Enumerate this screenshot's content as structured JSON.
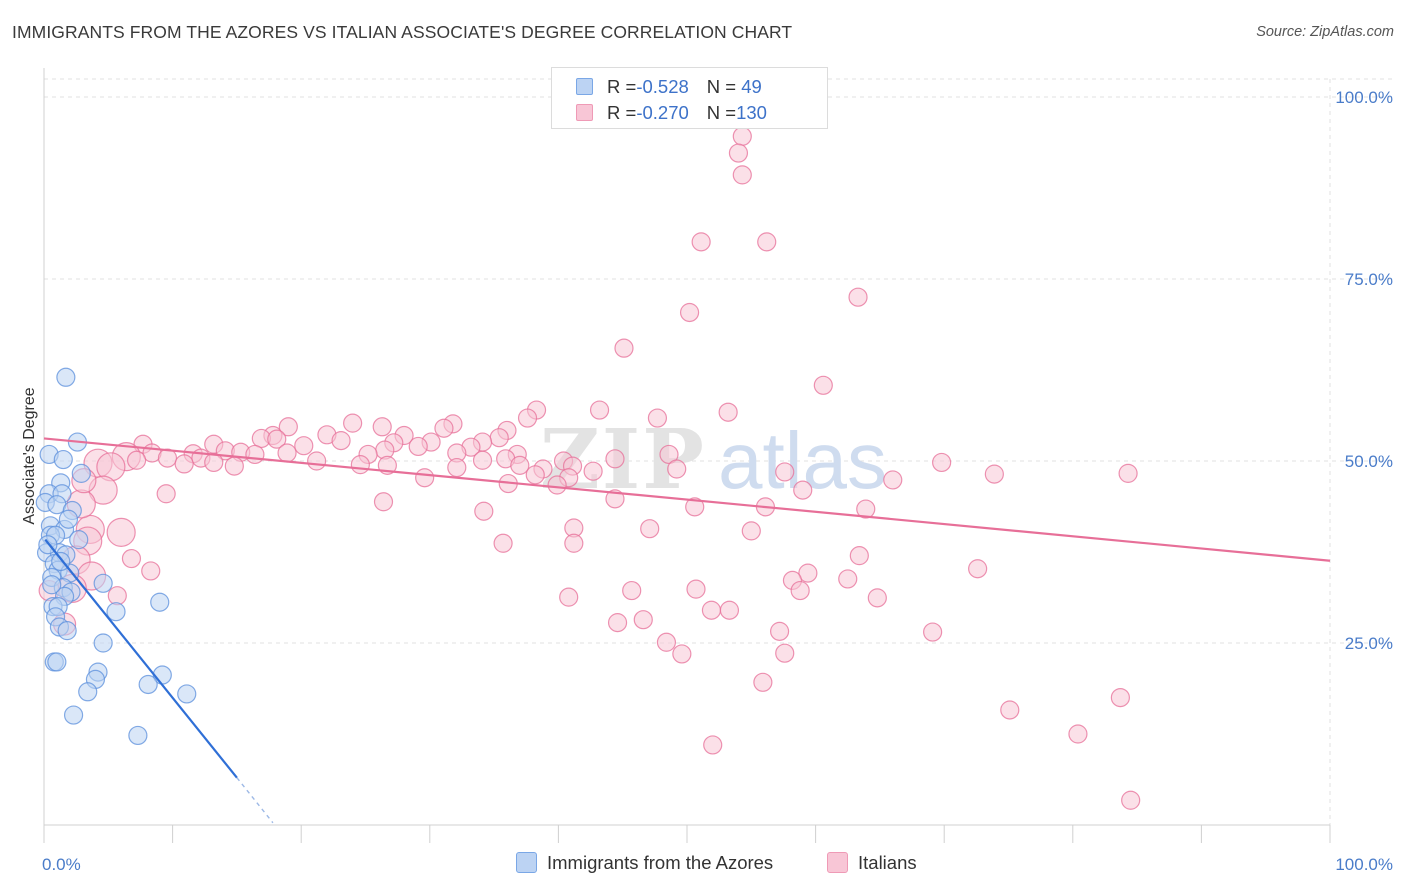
{
  "header": {
    "title": "IMMIGRANTS FROM THE AZORES VS ITALIAN ASSOCIATE'S DEGREE CORRELATION CHART",
    "source": "Source: ZipAtlas.com"
  },
  "watermark": {
    "part1": "ZIP",
    "part2": "atlas"
  },
  "legend": {
    "rows": [
      {
        "r_label": "R = ",
        "r_value": "-0.528",
        "n_label": "N = ",
        "n_value": " 49",
        "color": "#7aa7e6",
        "fill": "#bcd3f3"
      },
      {
        "r_label": "R = ",
        "r_value": "-0.270",
        "n_label": "N = ",
        "n_value": "130",
        "color": "#ef9ab6",
        "fill": "#f8c6d6"
      }
    ]
  },
  "bottom_legend": {
    "items": [
      {
        "label": "Immigrants from the Azores",
        "color": "#7aa7e6",
        "fill": "#bcd3f3"
      },
      {
        "label": "Italians",
        "color": "#ef9ab6",
        "fill": "#f8c6d6"
      }
    ]
  },
  "chart_data": {
    "type": "scatter",
    "title": "IMMIGRANTS FROM THE AZORES VS ITALIAN ASSOCIATE'S DEGREE CORRELATION CHART",
    "xlabel": "",
    "ylabel": "Associate's Degree",
    "xlim": [
      0,
      100
    ],
    "ylim": [
      0,
      100
    ],
    "x_ticks": [
      {
        "value": 0,
        "label": "0.0%"
      },
      {
        "value": 100,
        "label": "100.0%"
      }
    ],
    "y_ticks": [
      {
        "value": 25,
        "label": "25.0%"
      },
      {
        "value": 50,
        "label": "50.0%"
      },
      {
        "value": 75,
        "label": "75.0%"
      },
      {
        "value": 100,
        "label": "100.0%"
      }
    ],
    "grid": true,
    "legend_position": "top-center",
    "series": [
      {
        "name": "Immigrants from the Azores",
        "color": "#5b8fdc",
        "fill": "#bcd3f3",
        "stats": {
          "R": -0.528,
          "N": 49
        },
        "trend": {
          "x1": 0.1,
          "y1": 39.2,
          "x2": 15.0,
          "y2": 6.5,
          "dashed_to_x": 17.8,
          "dashed_to_y": 0.3
        },
        "points": [
          [
            1.7,
            61.5,
            9
          ],
          [
            2.6,
            52.6,
            9
          ],
          [
            0.4,
            50.9,
            9
          ],
          [
            1.5,
            50.2,
            9
          ],
          [
            2.9,
            48.3,
            9
          ],
          [
            1.3,
            47.0,
            9
          ],
          [
            0.4,
            45.5,
            9
          ],
          [
            1.4,
            45.5,
            9
          ],
          [
            0.1,
            44.3,
            9
          ],
          [
            1.0,
            44.0,
            9
          ],
          [
            2.2,
            43.2,
            9
          ],
          [
            0.5,
            41.1,
            9
          ],
          [
            1.6,
            40.6,
            9
          ],
          [
            0.5,
            39.8,
            9
          ],
          [
            0.9,
            39.8,
            9
          ],
          [
            2.7,
            39.2,
            9
          ],
          [
            0.2,
            37.4,
            9
          ],
          [
            1.2,
            37.4,
            9
          ],
          [
            1.7,
            37.1,
            9
          ],
          [
            0.8,
            35.9,
            9
          ],
          [
            1.1,
            35.0,
            9
          ],
          [
            2.0,
            34.6,
            9
          ],
          [
            0.6,
            34.0,
            9
          ],
          [
            4.6,
            33.2,
            9
          ],
          [
            1.5,
            32.6,
            9
          ],
          [
            2.1,
            32.0,
            9
          ],
          [
            1.6,
            31.4,
            9
          ],
          [
            9.0,
            30.6,
            9
          ],
          [
            0.7,
            30.0,
            9
          ],
          [
            1.1,
            30.0,
            9
          ],
          [
            5.6,
            29.3,
            9
          ],
          [
            0.9,
            28.6,
            9
          ],
          [
            1.2,
            27.2,
            9
          ],
          [
            1.8,
            26.7,
            9
          ],
          [
            4.6,
            25.0,
            9
          ],
          [
            0.8,
            22.4,
            9
          ],
          [
            1.0,
            22.4,
            9
          ],
          [
            4.2,
            21.0,
            9
          ],
          [
            9.2,
            20.6,
            9
          ],
          [
            4.0,
            20.0,
            9
          ],
          [
            8.1,
            19.3,
            9
          ],
          [
            3.4,
            18.3,
            9
          ],
          [
            11.1,
            18.0,
            9
          ],
          [
            2.3,
            15.1,
            9
          ],
          [
            7.3,
            12.3,
            9
          ],
          [
            0.3,
            38.5,
            9
          ],
          [
            1.9,
            42.0,
            9
          ],
          [
            0.6,
            33.0,
            9
          ],
          [
            1.3,
            36.2,
            9
          ]
        ]
      },
      {
        "name": "Italians",
        "color": "#e76f98",
        "fill": "#f8c6d6",
        "stats": {
          "R": -0.27,
          "N": 130
        },
        "trend": {
          "x1": 0.0,
          "y1": 53.1,
          "x2": 100.0,
          "y2": 36.3
        },
        "points": [
          [
            54.3,
            94.6,
            9
          ],
          [
            54.0,
            92.3,
            9
          ],
          [
            54.3,
            89.3,
            9
          ],
          [
            51.1,
            80.1,
            9
          ],
          [
            56.2,
            80.1,
            9
          ],
          [
            63.3,
            72.5,
            9
          ],
          [
            50.2,
            70.4,
            9
          ],
          [
            45.1,
            65.5,
            9
          ],
          [
            60.6,
            60.4,
            9
          ],
          [
            38.3,
            57.0,
            9
          ],
          [
            43.2,
            57.0,
            9
          ],
          [
            53.2,
            56.7,
            9
          ],
          [
            37.6,
            55.9,
            9
          ],
          [
            47.7,
            55.9,
            9
          ],
          [
            24.0,
            55.2,
            9
          ],
          [
            31.8,
            55.1,
            9
          ],
          [
            19.0,
            54.7,
            9
          ],
          [
            26.3,
            54.7,
            9
          ],
          [
            31.1,
            54.5,
            9
          ],
          [
            36.0,
            54.2,
            9
          ],
          [
            22.0,
            53.6,
            9
          ],
          [
            17.8,
            53.5,
            9
          ],
          [
            28.0,
            53.5,
            9
          ],
          [
            35.4,
            53.2,
            9
          ],
          [
            16.9,
            53.1,
            9
          ],
          [
            18.1,
            53.0,
            9
          ],
          [
            23.1,
            52.8,
            9
          ],
          [
            30.1,
            52.6,
            9
          ],
          [
            34.1,
            52.6,
            9
          ],
          [
            27.2,
            52.5,
            9
          ],
          [
            7.7,
            52.3,
            9
          ],
          [
            13.2,
            52.3,
            9
          ],
          [
            20.2,
            52.1,
            9
          ],
          [
            29.1,
            52.0,
            9
          ],
          [
            33.2,
            51.9,
            9
          ],
          [
            26.5,
            51.5,
            9
          ],
          [
            14.1,
            51.4,
            9
          ],
          [
            15.3,
            51.2,
            9
          ],
          [
            8.4,
            51.1,
            9
          ],
          [
            18.9,
            51.1,
            9
          ],
          [
            32.1,
            51.1,
            9
          ],
          [
            11.6,
            51.0,
            9
          ],
          [
            16.4,
            50.9,
            9
          ],
          [
            25.2,
            50.9,
            9
          ],
          [
            36.8,
            50.9,
            9
          ],
          [
            48.6,
            50.9,
            9
          ],
          [
            6.4,
            50.6,
            14
          ],
          [
            9.6,
            50.4,
            9
          ],
          [
            12.2,
            50.4,
            9
          ],
          [
            35.9,
            50.3,
            9
          ],
          [
            44.4,
            50.3,
            9
          ],
          [
            7.2,
            50.1,
            9
          ],
          [
            34.1,
            50.1,
            9
          ],
          [
            21.2,
            50.0,
            9
          ],
          [
            13.2,
            49.8,
            9
          ],
          [
            4.2,
            49.7,
            14
          ],
          [
            10.9,
            49.6,
            9
          ],
          [
            24.6,
            49.5,
            9
          ],
          [
            40.4,
            50.0,
            9
          ],
          [
            26.7,
            49.4,
            9
          ],
          [
            37.0,
            49.4,
            9
          ],
          [
            14.8,
            49.3,
            9
          ],
          [
            41.1,
            49.3,
            9
          ],
          [
            5.2,
            49.2,
            14
          ],
          [
            32.1,
            49.1,
            9
          ],
          [
            38.8,
            48.9,
            9
          ],
          [
            49.2,
            48.9,
            9
          ],
          [
            42.7,
            48.6,
            9
          ],
          [
            57.6,
            48.5,
            9
          ],
          [
            38.2,
            48.1,
            9
          ],
          [
            40.8,
            47.7,
            9
          ],
          [
            29.6,
            47.7,
            9
          ],
          [
            36.1,
            46.9,
            9
          ],
          [
            39.9,
            46.7,
            9
          ],
          [
            59.0,
            46.0,
            9
          ],
          [
            4.6,
            46.0,
            14
          ],
          [
            44.4,
            44.8,
            9
          ],
          [
            26.4,
            44.4,
            9
          ],
          [
            50.6,
            43.7,
            9
          ],
          [
            56.1,
            43.7,
            9
          ],
          [
            34.2,
            43.1,
            9
          ],
          [
            41.2,
            40.8,
            9
          ],
          [
            47.1,
            40.7,
            9
          ],
          [
            3.6,
            40.6,
            14
          ],
          [
            55.0,
            40.4,
            9
          ],
          [
            6.0,
            40.2,
            14
          ],
          [
            3.4,
            39.0,
            14
          ],
          [
            41.2,
            38.7,
            9
          ],
          [
            35.7,
            38.7,
            9
          ],
          [
            63.4,
            37.0,
            9
          ],
          [
            2.5,
            36.4,
            14
          ],
          [
            59.4,
            34.6,
            9
          ],
          [
            3.7,
            34.2,
            14
          ],
          [
            58.2,
            33.6,
            9
          ],
          [
            2.2,
            32.5,
            14
          ],
          [
            58.8,
            32.2,
            9
          ],
          [
            62.5,
            33.8,
            9
          ],
          [
            50.7,
            32.4,
            9
          ],
          [
            45.7,
            32.2,
            9
          ],
          [
            40.8,
            31.3,
            9
          ],
          [
            51.9,
            29.5,
            9
          ],
          [
            53.3,
            29.5,
            9
          ],
          [
            44.6,
            27.8,
            9
          ],
          [
            46.6,
            28.2,
            9
          ],
          [
            57.2,
            26.6,
            9
          ],
          [
            48.4,
            25.1,
            9
          ],
          [
            49.6,
            23.5,
            9
          ],
          [
            57.6,
            23.6,
            9
          ],
          [
            55.9,
            19.6,
            9
          ],
          [
            52.0,
            11.0,
            9
          ],
          [
            69.8,
            49.8,
            9
          ],
          [
            73.9,
            48.2,
            9
          ],
          [
            66.0,
            47.4,
            9
          ],
          [
            63.9,
            43.4,
            9
          ],
          [
            72.6,
            35.2,
            9
          ],
          [
            64.8,
            31.2,
            9
          ],
          [
            69.1,
            26.5,
            9
          ],
          [
            75.1,
            15.8,
            9
          ],
          [
            80.4,
            12.5,
            9
          ],
          [
            84.3,
            48.3,
            9
          ],
          [
            83.7,
            17.5,
            9
          ],
          [
            84.5,
            3.4,
            9
          ],
          [
            2.9,
            44.1,
            14
          ],
          [
            3.1,
            47.3,
            12
          ],
          [
            1.6,
            27.6,
            11
          ],
          [
            0.4,
            32.2,
            10
          ],
          [
            5.7,
            31.5,
            9
          ],
          [
            6.8,
            36.6,
            9
          ],
          [
            8.3,
            34.9,
            9
          ],
          [
            9.5,
            45.5,
            9
          ]
        ]
      }
    ]
  }
}
